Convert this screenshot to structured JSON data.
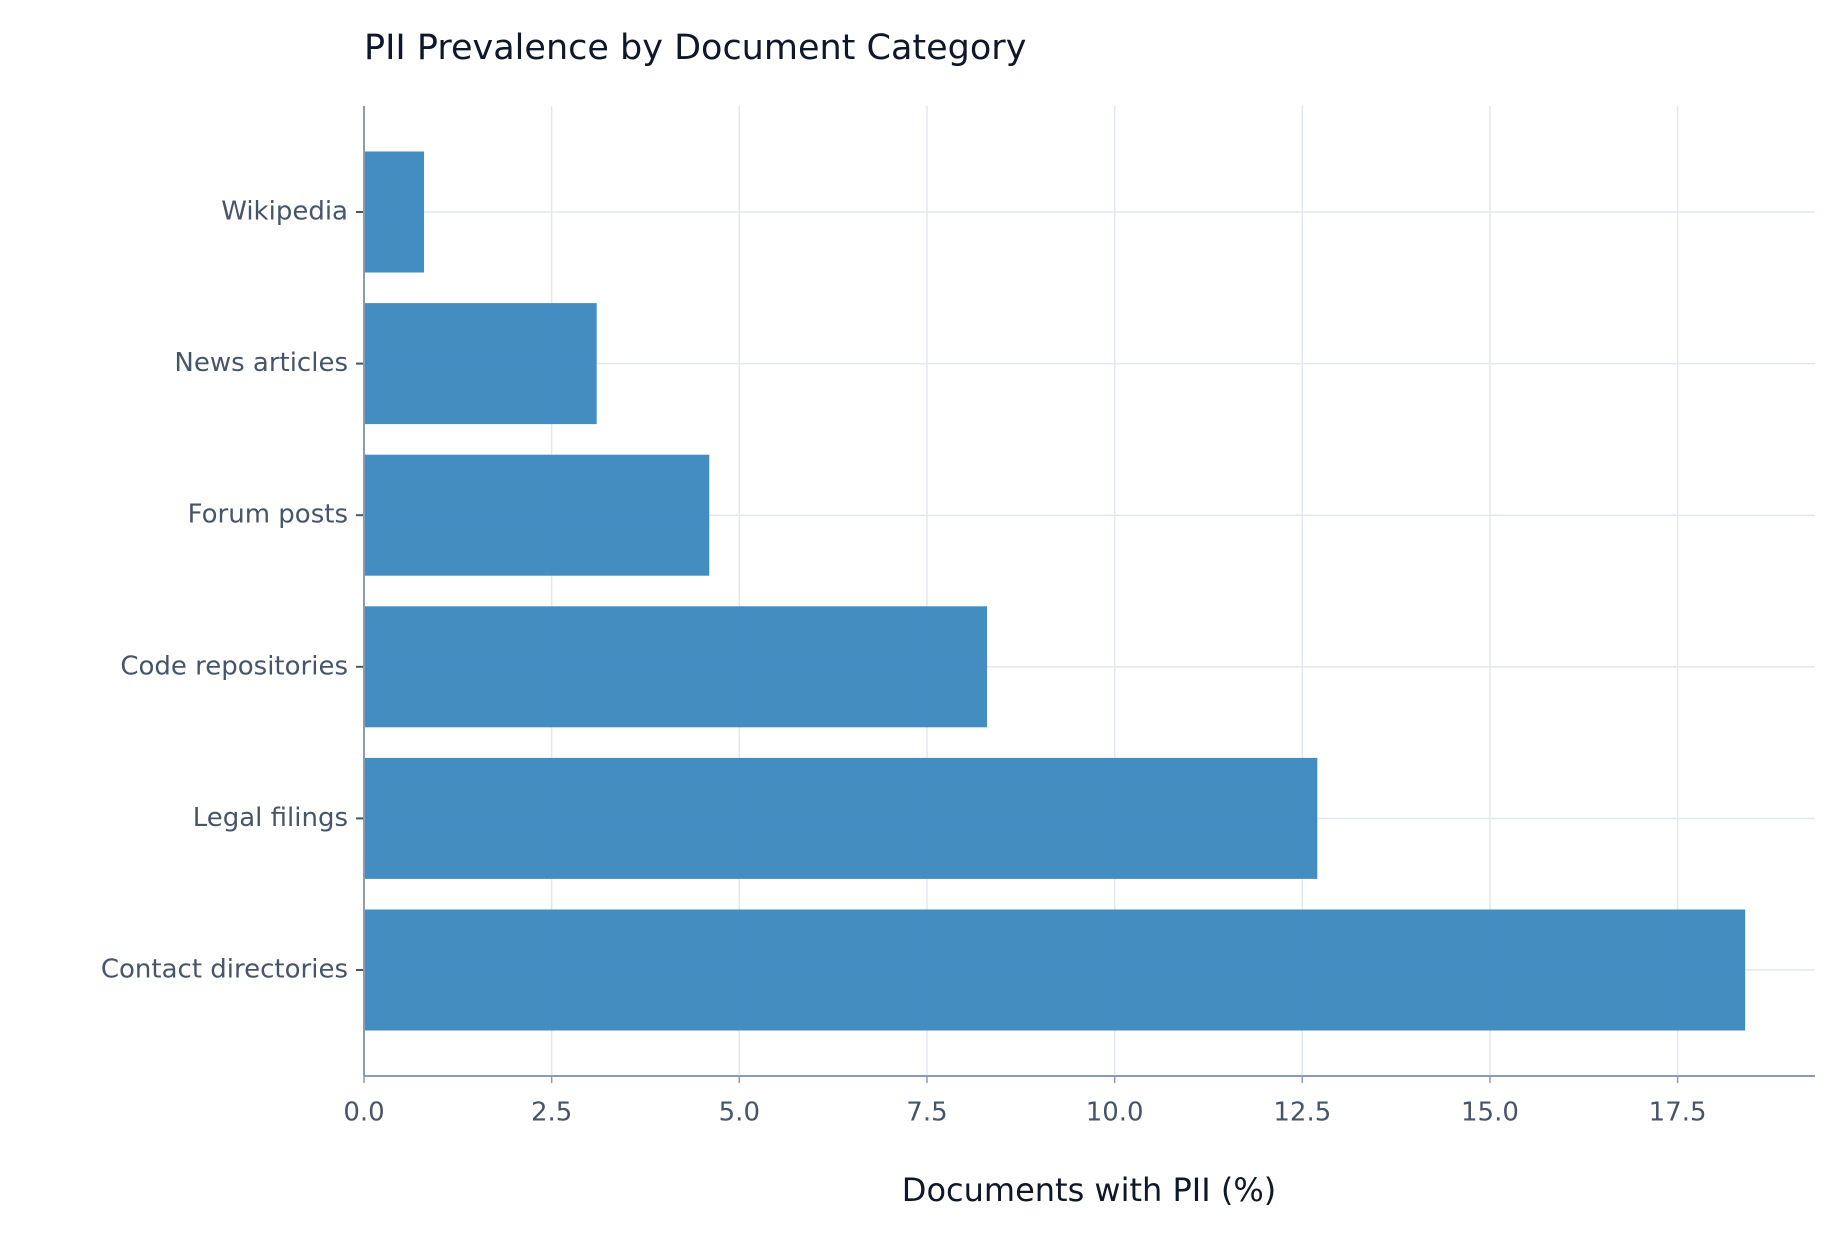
{
  "chart_data": {
    "type": "bar",
    "orientation": "horizontal",
    "title": "PII Prevalence by Document Category",
    "xlabel": "Documents with PII (%)",
    "categories": [
      "Wikipedia",
      "News articles",
      "Forum posts",
      "Code repositories",
      "Legal filings",
      "Contact directories"
    ],
    "values": [
      0.8,
      3.1,
      4.6,
      8.3,
      12.7,
      18.4
    ],
    "color": "#3a87be",
    "xlim": [
      0,
      19.33
    ],
    "xticks": [
      {
        "value": 0,
        "label": "0.0"
      },
      {
        "value": 2.5,
        "label": "2.5"
      },
      {
        "value": 5,
        "label": "5.0"
      },
      {
        "value": 7.5,
        "label": "7.5"
      },
      {
        "value": 10,
        "label": "10.0"
      },
      {
        "value": 12.5,
        "label": "12.5"
      },
      {
        "value": 15,
        "label": "15.0"
      },
      {
        "value": 17.5,
        "label": "17.5"
      }
    ],
    "grid": true
  }
}
